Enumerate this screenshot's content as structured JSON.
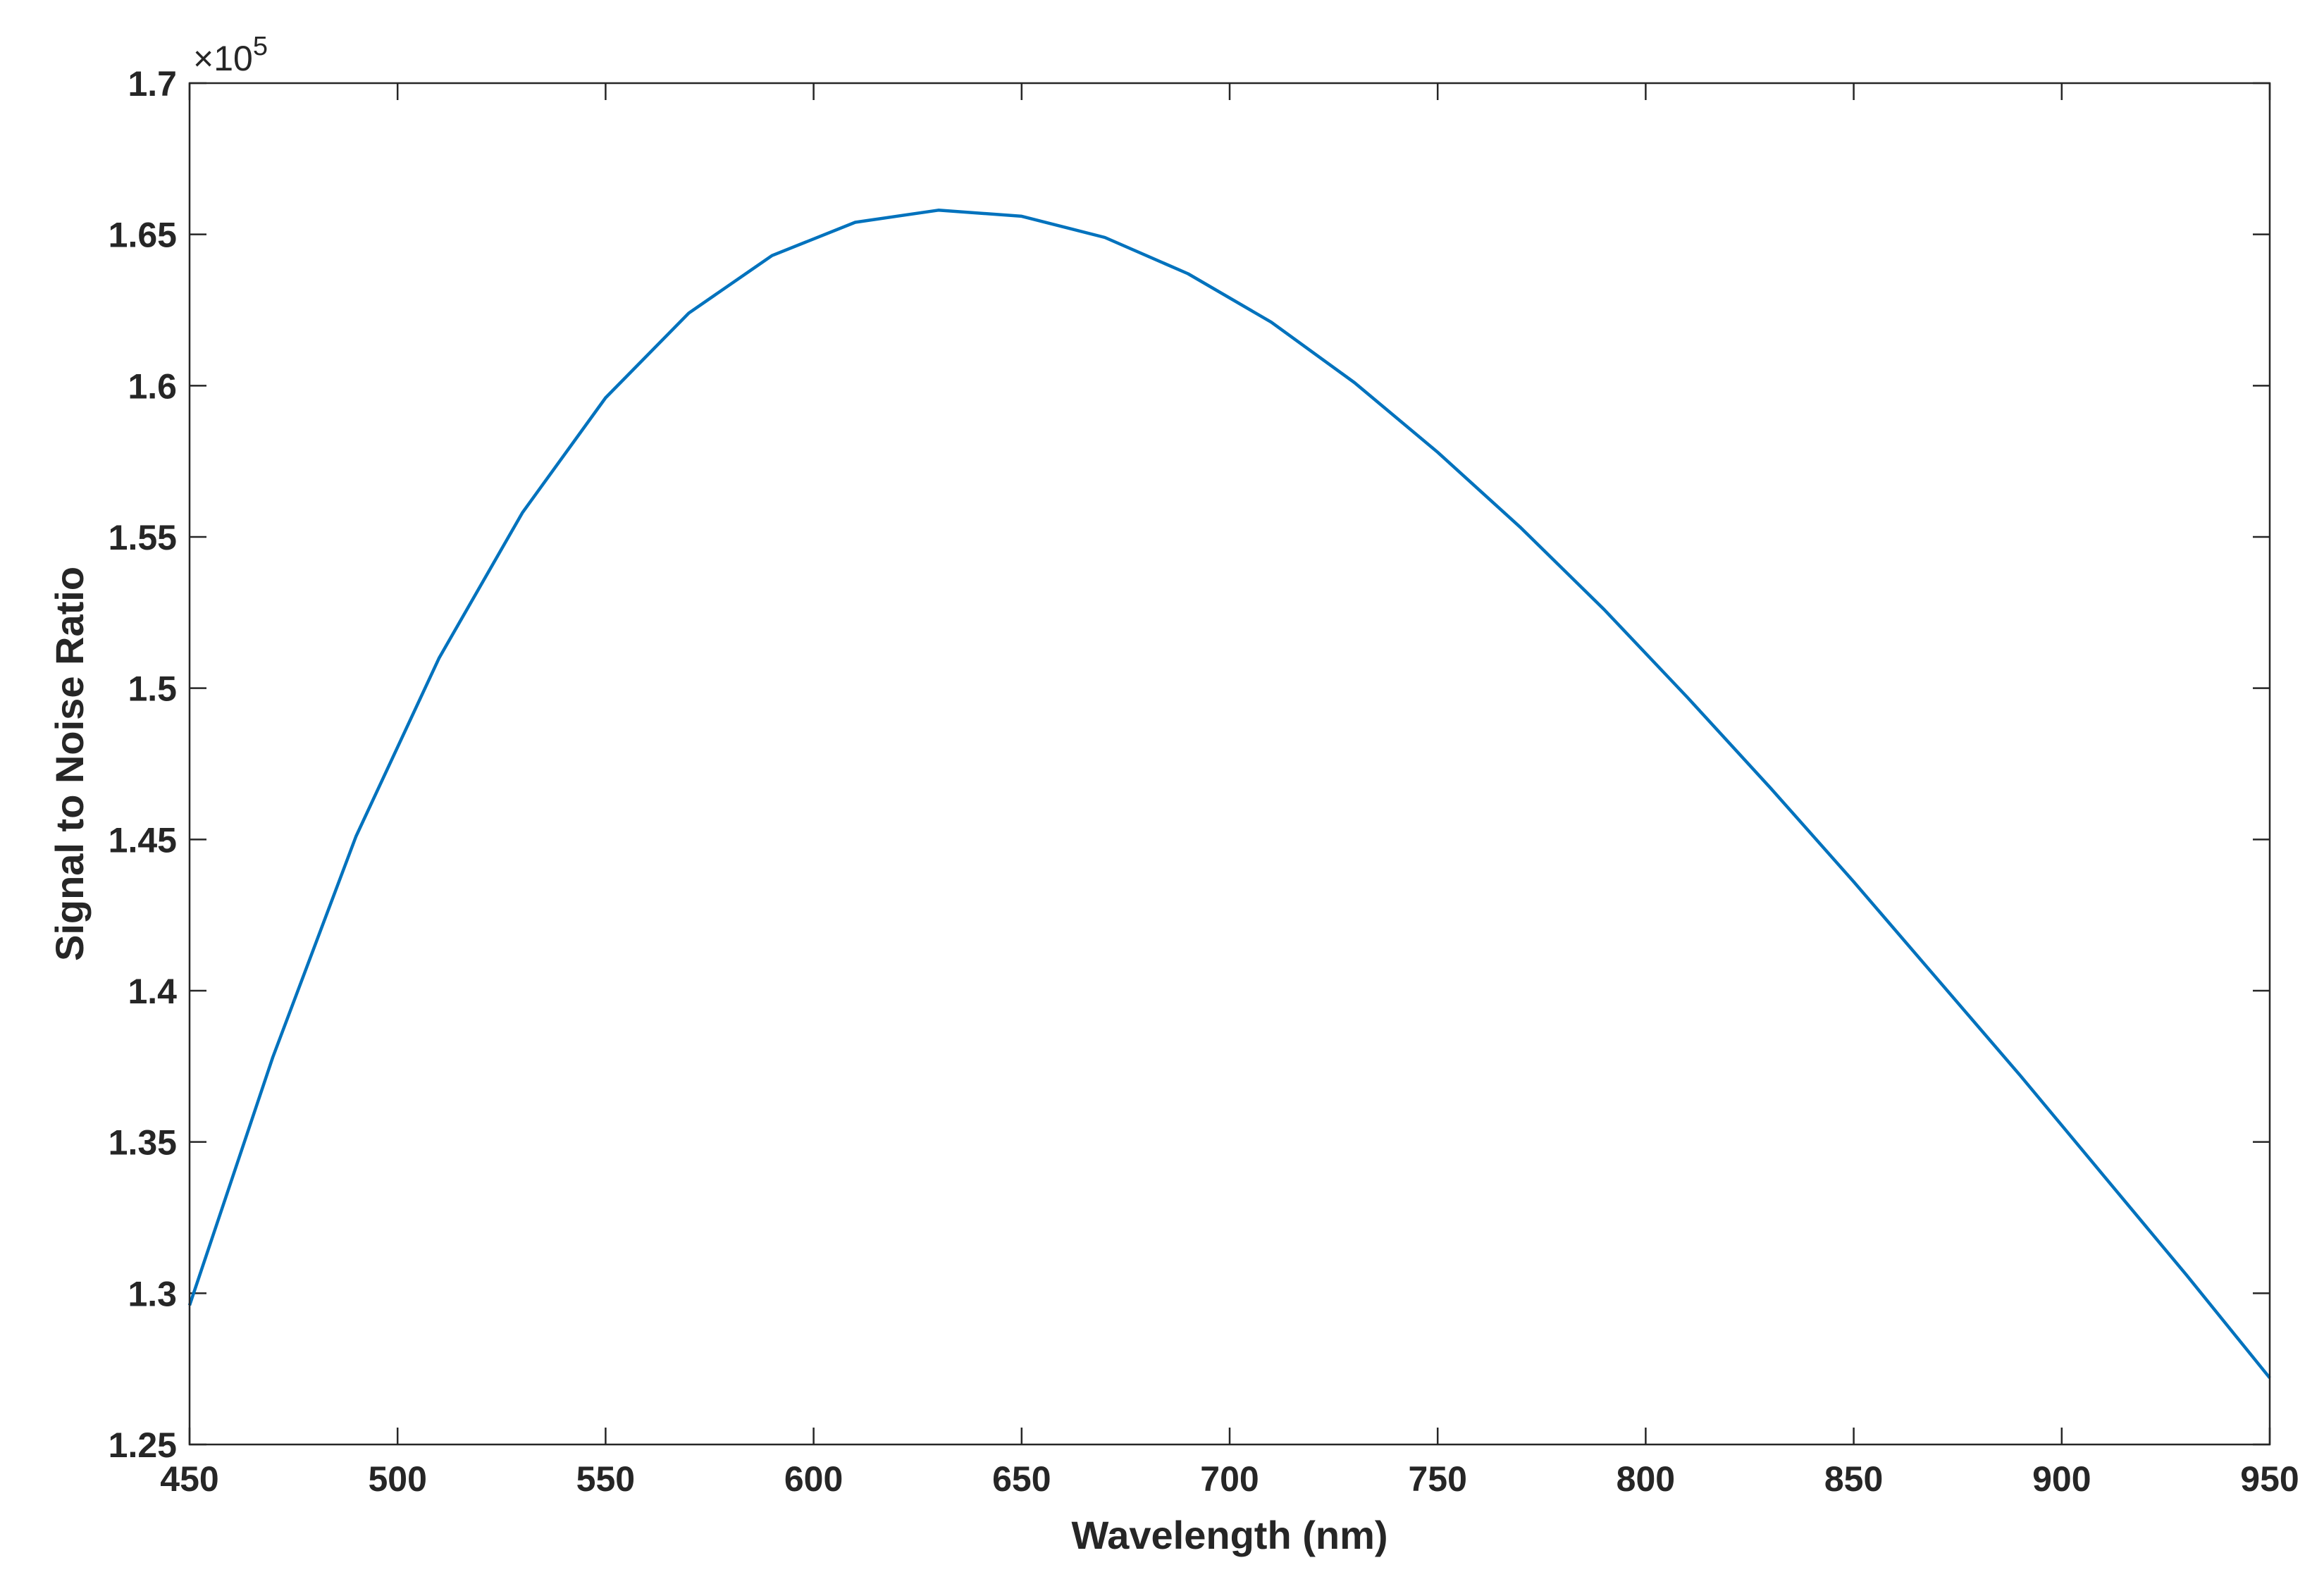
{
  "chart_data": {
    "type": "line",
    "title": "",
    "xlabel": "Wavelength (nm)",
    "ylabel": "Signal to Noise Ratio",
    "y_exponent_base": "×10",
    "y_exponent_power": "5",
    "xlim": [
      450,
      950
    ],
    "ylim": [
      1.25,
      1.7
    ],
    "xticks": [
      450,
      500,
      550,
      600,
      650,
      700,
      750,
      800,
      850,
      900,
      950
    ],
    "xtick_labels": [
      "450",
      "500",
      "550",
      "600",
      "650",
      "700",
      "750",
      "800",
      "850",
      "900",
      "950"
    ],
    "yticks": [
      1.25,
      1.3,
      1.35,
      1.4,
      1.45,
      1.5,
      1.55,
      1.6,
      1.65,
      1.7
    ],
    "ytick_labels": [
      "1.25",
      "1.3",
      "1.35",
      "1.4",
      "1.45",
      "1.5",
      "1.55",
      "1.6",
      "1.65",
      "1.7"
    ],
    "grid": false,
    "series": [
      {
        "color": "#0072BD",
        "x": [
          450,
          470,
          490,
          510,
          530,
          550,
          570,
          590,
          610,
          630,
          650,
          670,
          690,
          710,
          730,
          750,
          770,
          790,
          810,
          830,
          850,
          870,
          890,
          910,
          930,
          950
        ],
        "y": [
          1.296,
          1.378,
          1.451,
          1.51,
          1.558,
          1.596,
          1.624,
          1.643,
          1.654,
          1.658,
          1.656,
          1.649,
          1.637,
          1.621,
          1.601,
          1.578,
          1.553,
          1.526,
          1.497,
          1.467,
          1.436,
          1.404,
          1.372,
          1.339,
          1.306,
          1.272
        ]
      }
    ]
  }
}
